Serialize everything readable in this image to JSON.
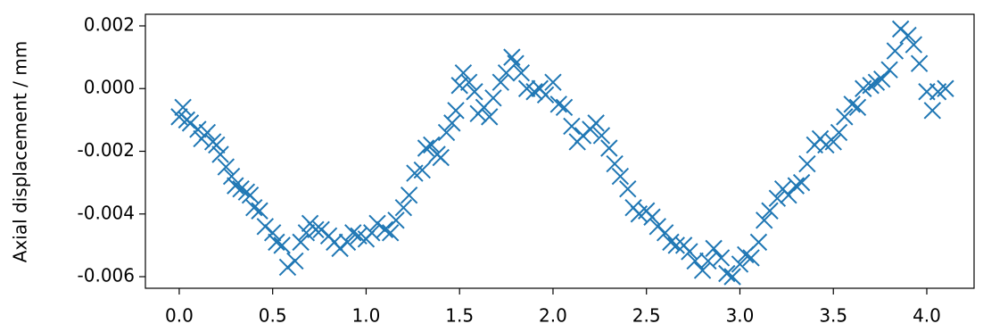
{
  "chart_data": {
    "type": "scatter",
    "y_label": "Axial displacement / mm",
    "marker": "x",
    "color": "#1f77b4",
    "x": [
      0.0,
      0.02,
      0.04,
      0.06,
      0.1,
      0.12,
      0.15,
      0.18,
      0.2,
      0.22,
      0.25,
      0.28,
      0.3,
      0.33,
      0.36,
      0.38,
      0.4,
      0.43,
      0.46,
      0.5,
      0.52,
      0.55,
      0.58,
      0.62,
      0.65,
      0.68,
      0.7,
      0.73,
      0.76,
      0.8,
      0.83,
      0.86,
      0.9,
      0.93,
      0.96,
      1.0,
      1.03,
      1.06,
      1.1,
      1.13,
      1.16,
      1.2,
      1.23,
      1.26,
      1.3,
      1.32,
      1.35,
      1.38,
      1.4,
      1.43,
      1.46,
      1.48,
      1.5,
      1.52,
      1.55,
      1.58,
      1.6,
      1.63,
      1.66,
      1.68,
      1.72,
      1.75,
      1.78,
      1.8,
      1.83,
      1.86,
      1.9,
      1.93,
      1.96,
      2.0,
      2.03,
      2.06,
      2.1,
      2.13,
      2.16,
      2.2,
      2.23,
      2.26,
      2.3,
      2.33,
      2.36,
      2.4,
      2.43,
      2.46,
      2.5,
      2.53,
      2.56,
      2.6,
      2.63,
      2.66,
      2.7,
      2.73,
      2.76,
      2.8,
      2.83,
      2.86,
      2.9,
      2.93,
      2.96,
      3.0,
      3.03,
      3.06,
      3.1,
      3.13,
      3.16,
      3.2,
      3.23,
      3.26,
      3.3,
      3.33,
      3.36,
      3.4,
      3.43,
      3.46,
      3.5,
      3.53,
      3.56,
      3.6,
      3.63,
      3.66,
      3.7,
      3.73,
      3.76,
      3.8,
      3.83,
      3.86,
      3.9,
      3.93,
      3.96,
      4.0,
      4.03,
      4.06,
      4.1
    ],
    "values": [
      -0.0009,
      -0.0006,
      -0.001,
      -0.0011,
      -0.0013,
      -0.0016,
      -0.0014,
      -0.0017,
      -0.0018,
      -0.0021,
      -0.0025,
      -0.0028,
      -0.0031,
      -0.0032,
      -0.0033,
      -0.0034,
      -0.0038,
      -0.0039,
      -0.0044,
      -0.0046,
      -0.0049,
      -0.005,
      -0.0057,
      -0.0055,
      -0.0049,
      -0.0046,
      -0.0043,
      -0.0045,
      -0.0045,
      -0.0047,
      -0.0049,
      -0.0051,
      -0.0049,
      -0.0046,
      -0.0047,
      -0.0048,
      -0.0046,
      -0.0043,
      -0.0045,
      -0.0046,
      -0.0042,
      -0.0038,
      -0.0034,
      -0.0027,
      -0.0026,
      -0.0019,
      -0.0018,
      -0.0021,
      -0.0022,
      -0.0014,
      -0.0011,
      -0.0007,
      0.0001,
      0.0005,
      0.0002,
      -0.0001,
      -0.0008,
      -0.0006,
      -0.0009,
      -0.0003,
      0.0002,
      0.0005,
      0.001,
      0.0008,
      0.0005,
      0.0,
      -0.0001,
      0.0,
      -0.0002,
      0.0002,
      -0.0005,
      -0.0006,
      -0.0012,
      -0.0017,
      -0.0015,
      -0.0013,
      -0.0011,
      -0.0015,
      -0.0019,
      -0.0024,
      -0.0028,
      -0.0032,
      -0.0038,
      -0.004,
      -0.0039,
      -0.0041,
      -0.0044,
      -0.0046,
      -0.0049,
      -0.005,
      -0.005,
      -0.0052,
      -0.0055,
      -0.0058,
      -0.0055,
      -0.0051,
      -0.0054,
      -0.0059,
      -0.006,
      -0.0056,
      -0.0053,
      -0.0054,
      -0.0049,
      -0.0042,
      -0.0039,
      -0.0035,
      -0.0032,
      -0.0034,
      -0.0031,
      -0.003,
      -0.0024,
      -0.0018,
      -0.0016,
      -0.0018,
      -0.0017,
      -0.0014,
      -0.0009,
      -0.0005,
      -0.0006,
      0.0,
      0.0001,
      0.0002,
      0.0003,
      0.0006,
      0.0012,
      0.0019,
      0.0017,
      0.0014,
      0.0008,
      -0.0001,
      -0.0007,
      -0.0001,
      0.0
    ],
    "xlim": [
      -0.181,
      4.253
    ],
    "ylim": [
      -0.00637,
      0.00237
    ],
    "xticks": [
      {
        "value": 0,
        "label": "0.0"
      },
      0.5,
      {
        "value": 1,
        "label": "1.0"
      },
      1.5,
      {
        "value": 2,
        "label": "2.0"
      },
      2.5,
      {
        "value": 3,
        "label": "3.0"
      },
      3.5,
      {
        "value": 4,
        "label": "4.0"
      }
    ],
    "yticks": [
      {
        "value": -0.006,
        "label": "-0.006"
      },
      {
        "value": -0.004,
        "label": "-0.004"
      },
      {
        "value": -0.002,
        "label": "-0.002"
      },
      {
        "value": 0,
        "label": "0.000"
      },
      0.002
    ]
  }
}
